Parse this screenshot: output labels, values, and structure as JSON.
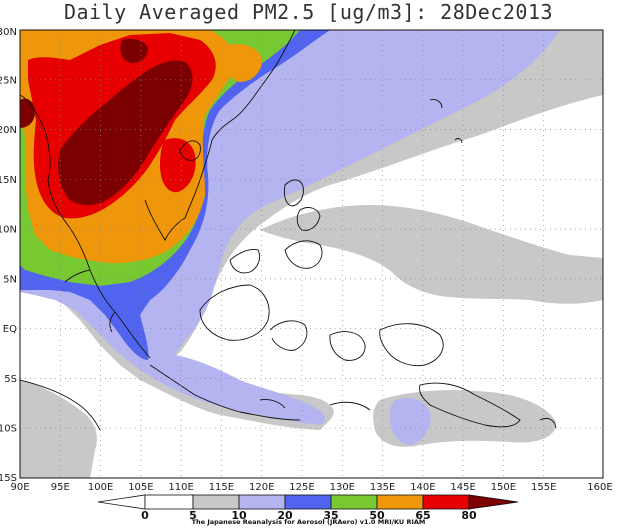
{
  "title": "Daily Averaged PM2.5 [ug/m3]: 28Dec2013",
  "credit": "The Japanese Reanalysis for Aerosol (JRAero) v1.0 MRI/KU RIAM",
  "lon_labels": [
    "90E",
    "95E",
    "100E",
    "105E",
    "110E",
    "115E",
    "120E",
    "125E",
    "130E",
    "135E",
    "140E",
    "145E",
    "150E",
    "155E",
    "160E"
  ],
  "lat_labels": [
    "30N",
    "25N",
    "20N",
    "15N",
    "10N",
    "5N",
    "EQ",
    "5S",
    "10S",
    "15S"
  ],
  "colorbar": {
    "levels": [
      "0",
      "5",
      "10",
      "20",
      "35",
      "50",
      "65",
      "80"
    ],
    "colors": [
      "#ffffff",
      "#ffffff",
      "#c8c8c8",
      "#b4b4f0",
      "#5064f0",
      "#78c832",
      "#f0960a",
      "#e60000",
      "#7d0000"
    ]
  }
}
